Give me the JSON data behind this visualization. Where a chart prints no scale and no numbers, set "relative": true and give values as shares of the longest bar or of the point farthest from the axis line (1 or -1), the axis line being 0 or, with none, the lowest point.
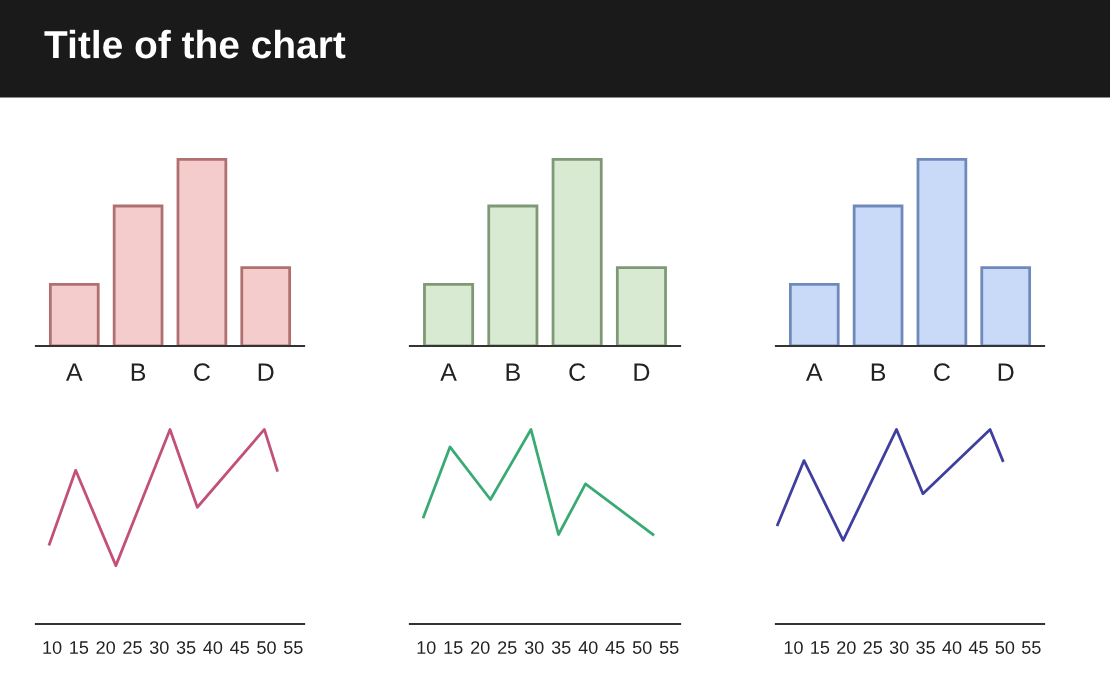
{
  "chart_data": [
    {
      "type": "bar",
      "title": "Title of the chart",
      "relative": true,
      "categories": [
        "A",
        "B",
        "C",
        "D"
      ],
      "values": [
        0.33,
        0.75,
        1,
        0.42
      ],
      "color": "#f4cccc"
    },
    {
      "type": "bar",
      "relative": true,
      "categories": [
        "A",
        "B",
        "C",
        "D"
      ],
      "values": [
        0.33,
        0.75,
        1,
        0.42
      ],
      "color": "#d9ead3"
    },
    {
      "type": "bar",
      "relative": true,
      "categories": [
        "A",
        "B",
        "C",
        "D"
      ],
      "values": [
        0.33,
        0.75,
        1,
        0.42
      ],
      "color": "#c9daf8"
    },
    {
      "type": "line",
      "relative": true,
      "x": [
        9.5,
        14.4,
        21.9,
        32,
        37.1,
        49.6,
        52
      ],
      "values": [
        0.41,
        0.79,
        0.3,
        1,
        0.6,
        1,
        0.79
      ],
      "color": "#c2507a",
      "xlim": [
        7,
        57
      ],
      "xticks": [
        10,
        15,
        20,
        25,
        30,
        35,
        40,
        45,
        50,
        55
      ]
    },
    {
      "type": "line",
      "relative": true,
      "x": [
        9.5,
        14.4,
        21.9,
        29.4,
        34.5,
        39.5,
        52
      ],
      "values": [
        0.55,
        0.91,
        0.64,
        1,
        0.46,
        0.72,
        0.46
      ],
      "color": "#3aaa75",
      "xlim": [
        7,
        57
      ],
      "xticks": [
        10,
        15,
        20,
        25,
        30,
        35,
        40,
        45,
        50,
        55
      ]
    },
    {
      "type": "line",
      "relative": true,
      "x": [
        7,
        12,
        19.4,
        29.5,
        34.5,
        47.2,
        49.6
      ],
      "values": [
        0.51,
        0.84,
        0.43,
        1,
        0.67,
        1,
        0.84
      ],
      "color": "#3f3f9f",
      "xlim": [
        6.7,
        57.4
      ],
      "xticks": [
        10,
        15,
        20,
        25,
        30,
        35,
        40,
        45,
        50,
        55
      ]
    }
  ]
}
